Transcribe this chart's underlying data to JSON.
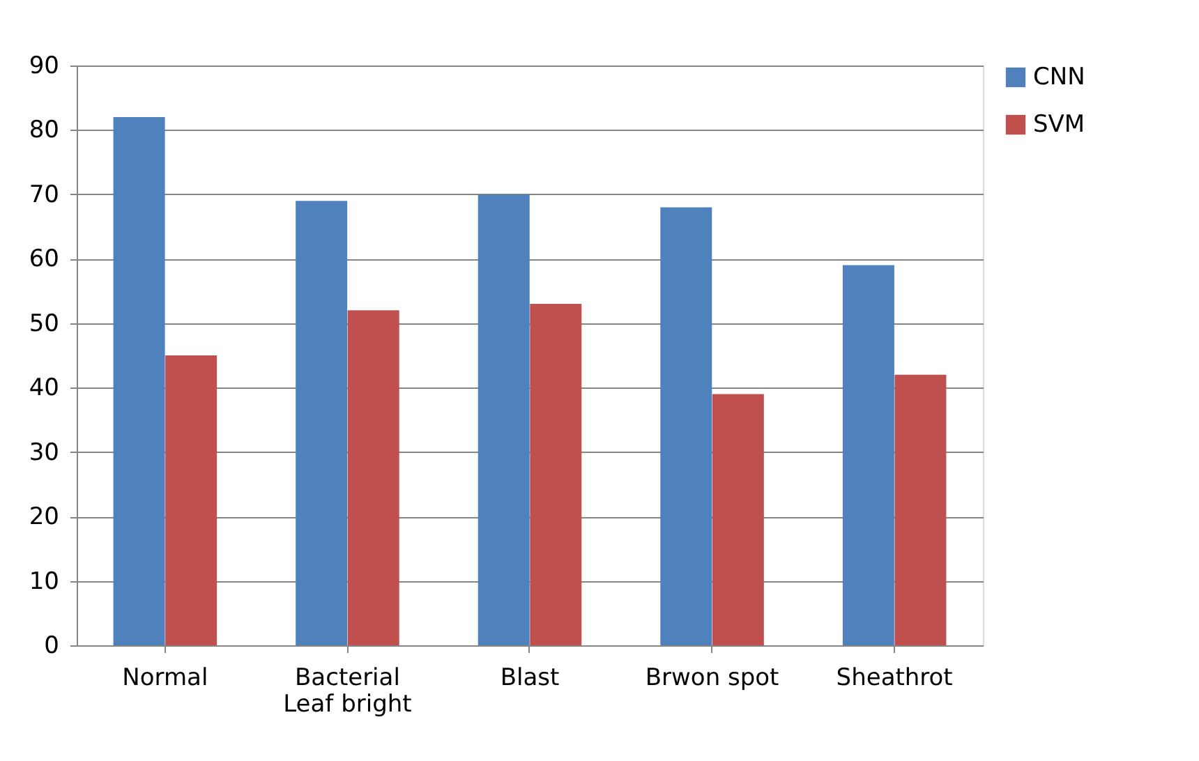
{
  "chart_data": {
    "type": "bar",
    "categories": [
      "Normal",
      "Bacterial Leaf bright",
      "Blast",
      "Brwon spot",
      "Sheathrot"
    ],
    "series": [
      {
        "name": "CNN",
        "color": "#4f81bd",
        "values": [
          82,
          69,
          70,
          68,
          59
        ]
      },
      {
        "name": "SVM",
        "color": "#c0504d",
        "values": [
          45,
          52,
          53,
          39,
          42
        ]
      }
    ],
    "ylim": [
      0,
      90
    ],
    "yticks": [
      0,
      10,
      20,
      30,
      40,
      50,
      60,
      70,
      80,
      90
    ],
    "grid": "y",
    "legend": "right"
  }
}
